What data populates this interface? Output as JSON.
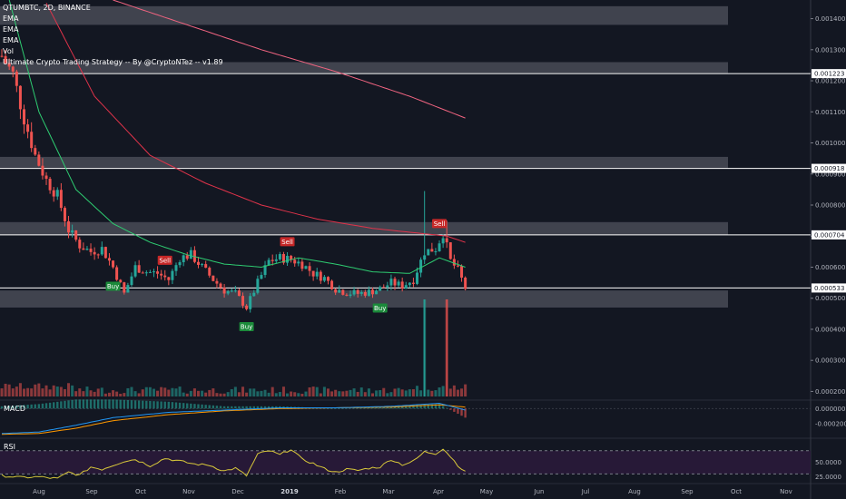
{
  "legend": {
    "symbol": "QTUMBTC, 2D, BINANCE",
    "ema1": "EMA",
    "ema2": "EMA",
    "ema3": "EMA",
    "vol": "Vol",
    "strategy": "Ultimate Crypto Trading Strategy -- By @CryptoNTez -- v1.89"
  },
  "panes": {
    "macd": "MACD",
    "rsi": "RSI"
  },
  "colors": {
    "background": "#131722",
    "up": "#26a69a",
    "down": "#ef5350",
    "ema_fast": "#2ecc71",
    "ema_slow": "#e0334a",
    "ema_long": "#f06480",
    "zone": "#787b86",
    "rsi_line": "#d9c93a",
    "rsi_bg": "#2a1a3a",
    "buy": "#1b8a3a",
    "sell": "#c62828"
  },
  "chart_data": {
    "type": "candlestick",
    "x_ticks": [
      "Aug",
      "Sep",
      "Oct",
      "Nov",
      "Dec",
      "2019",
      "Feb",
      "Mar",
      "Apr",
      "May",
      "Jun",
      "Jul",
      "Aug",
      "Sep",
      "Oct",
      "Nov"
    ],
    "y_ticks": [
      "0.001400",
      "0.001300",
      "0.001200",
      "0.001100",
      "0.001000",
      "0.000900",
      "0.000800",
      "0.000700",
      "0.000600",
      "0.000500",
      "0.000400",
      "0.000300",
      "0.000200"
    ],
    "ylim": [
      0.000175,
      0.00146
    ],
    "price_lines": [
      {
        "value": 0.001223,
        "label": "0.001223"
      },
      {
        "value": 0.000918,
        "label": "0.000918"
      },
      {
        "value": 0.000704,
        "label": "0.000704"
      },
      {
        "value": 0.000533,
        "label": "0.000533"
      }
    ],
    "zones": [
      {
        "low": 0.00138,
        "high": 0.00144
      },
      {
        "low": 0.001225,
        "high": 0.00126
      },
      {
        "low": 0.00092,
        "high": 0.000955
      },
      {
        "low": 0.000705,
        "high": 0.000745
      },
      {
        "low": 0.00047,
        "high": 0.000525
      }
    ],
    "close_path": [
      [
        0,
        0.00128
      ],
      [
        3,
        0.00122
      ],
      [
        6,
        0.00108
      ],
      [
        9,
        0.00096
      ],
      [
        12,
        0.00088
      ],
      [
        15,
        0.00083
      ],
      [
        18,
        0.00072
      ],
      [
        21,
        0.00067
      ],
      [
        24,
        0.00065
      ],
      [
        27,
        0.00066
      ],
      [
        30,
        0.0006
      ],
      [
        33,
        0.000515
      ],
      [
        36,
        0.0006
      ],
      [
        39,
        0.000585
      ],
      [
        42,
        0.00058
      ],
      [
        45,
        0.00056
      ],
      [
        48,
        0.00063
      ],
      [
        51,
        0.00064
      ],
      [
        54,
        0.0006
      ],
      [
        57,
        0.00056
      ],
      [
        60,
        0.000525
      ],
      [
        63,
        0.000515
      ],
      [
        66,
        0.00047
      ],
      [
        69,
        0.00055
      ],
      [
        72,
        0.00062
      ],
      [
        75,
        0.00063
      ],
      [
        78,
        0.000625
      ],
      [
        81,
        0.00061
      ],
      [
        84,
        0.00058
      ],
      [
        87,
        0.000565
      ],
      [
        90,
        0.00053
      ],
      [
        93,
        0.000518
      ],
      [
        96,
        0.000515
      ],
      [
        99,
        0.00052
      ],
      [
        102,
        0.00053
      ],
      [
        105,
        0.00055
      ],
      [
        108,
        0.00054
      ],
      [
        111,
        0.00056
      ],
      [
        114,
        0.00065
      ],
      [
        117,
        0.00066
      ],
      [
        119,
        0.00071
      ],
      [
        121,
        0.00062
      ],
      [
        123,
        0.00059
      ],
      [
        125,
        0.000533
      ]
    ],
    "spikes": [
      {
        "bar": 114,
        "high": 0.000845,
        "volume_high": true
      },
      {
        "bar": 120,
        "high": 0.00075,
        "volume_high": true
      }
    ],
    "ema_fast": [
      [
        0,
        0.00155
      ],
      [
        10,
        0.0011
      ],
      [
        20,
        0.00085
      ],
      [
        30,
        0.00074
      ],
      [
        40,
        0.00068
      ],
      [
        50,
        0.00064
      ],
      [
        60,
        0.00061
      ],
      [
        70,
        0.0006
      ],
      [
        80,
        0.00063
      ],
      [
        90,
        0.00061
      ],
      [
        100,
        0.000585
      ],
      [
        110,
        0.00058
      ],
      [
        118,
        0.00063
      ],
      [
        125,
        0.0006
      ]
    ],
    "ema_slow": [
      [
        12,
        0.00145
      ],
      [
        25,
        0.00115
      ],
      [
        40,
        0.00096
      ],
      [
        55,
        0.00087
      ],
      [
        70,
        0.0008
      ],
      [
        85,
        0.000755
      ],
      [
        100,
        0.000725
      ],
      [
        112,
        0.00071
      ],
      [
        120,
        0.0007
      ],
      [
        125,
        0.00068
      ]
    ],
    "ema_long": [
      [
        30,
        0.00146
      ],
      [
        50,
        0.00138
      ],
      [
        70,
        0.0013
      ],
      [
        90,
        0.00123
      ],
      [
        110,
        0.00115
      ],
      [
        125,
        0.00108
      ]
    ],
    "signals": [
      {
        "bar": 30,
        "type": "buy",
        "label": "Buy"
      },
      {
        "bar": 44,
        "type": "sell",
        "label": "Sell"
      },
      {
        "bar": 66,
        "type": "buy",
        "label": "Buy"
      },
      {
        "bar": 77,
        "type": "sell",
        "label": "Sell"
      },
      {
        "bar": 102,
        "type": "buy",
        "label": "Buy"
      },
      {
        "bar": 118,
        "type": "sell",
        "label": "Sell"
      }
    ],
    "macd": {
      "ticks": [
        "0.000000",
        "-0.000200"
      ],
      "ylim": [
        -0.00038,
        0.0001
      ],
      "macd_line": [
        [
          0,
          -0.00033
        ],
        [
          10,
          -0.00031
        ],
        [
          20,
          -0.00022
        ],
        [
          30,
          -0.00012
        ],
        [
          45,
          -5e-05
        ],
        [
          60,
          -2e-05
        ],
        [
          75,
          1e-05
        ],
        [
          90,
          1e-05
        ],
        [
          105,
          3e-05
        ],
        [
          118,
          7e-05
        ],
        [
          125,
          -2e-05
        ]
      ],
      "signal_line": [
        [
          0,
          -0.00034
        ],
        [
          10,
          -0.00033
        ],
        [
          20,
          -0.00026
        ],
        [
          30,
          -0.00016
        ],
        [
          45,
          -8e-05
        ],
        [
          60,
          -3e-05
        ],
        [
          75,
          0.0
        ],
        [
          90,
          1e-05
        ],
        [
          105,
          2e-05
        ],
        [
          118,
          5e-05
        ],
        [
          125,
          2e-05
        ]
      ]
    },
    "rsi": {
      "ticks": [
        "50.0000",
        "25.0000"
      ],
      "ylim": [
        15,
        90
      ],
      "upper_band": 70,
      "lower_band": 30,
      "values": [
        [
          0,
          27
        ],
        [
          5,
          24
        ],
        [
          10,
          25
        ],
        [
          15,
          22
        ],
        [
          18,
          33
        ],
        [
          21,
          28
        ],
        [
          24,
          42
        ],
        [
          27,
          38
        ],
        [
          30,
          45
        ],
        [
          33,
          52
        ],
        [
          36,
          55
        ],
        [
          40,
          44
        ],
        [
          44,
          57
        ],
        [
          48,
          52
        ],
        [
          52,
          47
        ],
        [
          56,
          45
        ],
        [
          60,
          35
        ],
        [
          63,
          40
        ],
        [
          66,
          27
        ],
        [
          69,
          64
        ],
        [
          72,
          70
        ],
        [
          75,
          63
        ],
        [
          78,
          73
        ],
        [
          81,
          55
        ],
        [
          84,
          48
        ],
        [
          87,
          39
        ],
        [
          90,
          33
        ],
        [
          93,
          38
        ],
        [
          96,
          36
        ],
        [
          99,
          40
        ],
        [
          102,
          42
        ],
        [
          105,
          55
        ],
        [
          108,
          46
        ],
        [
          111,
          52
        ],
        [
          114,
          68
        ],
        [
          117,
          65
        ],
        [
          119,
          74
        ],
        [
          121,
          60
        ],
        [
          123,
          45
        ],
        [
          125,
          33
        ]
      ]
    }
  }
}
